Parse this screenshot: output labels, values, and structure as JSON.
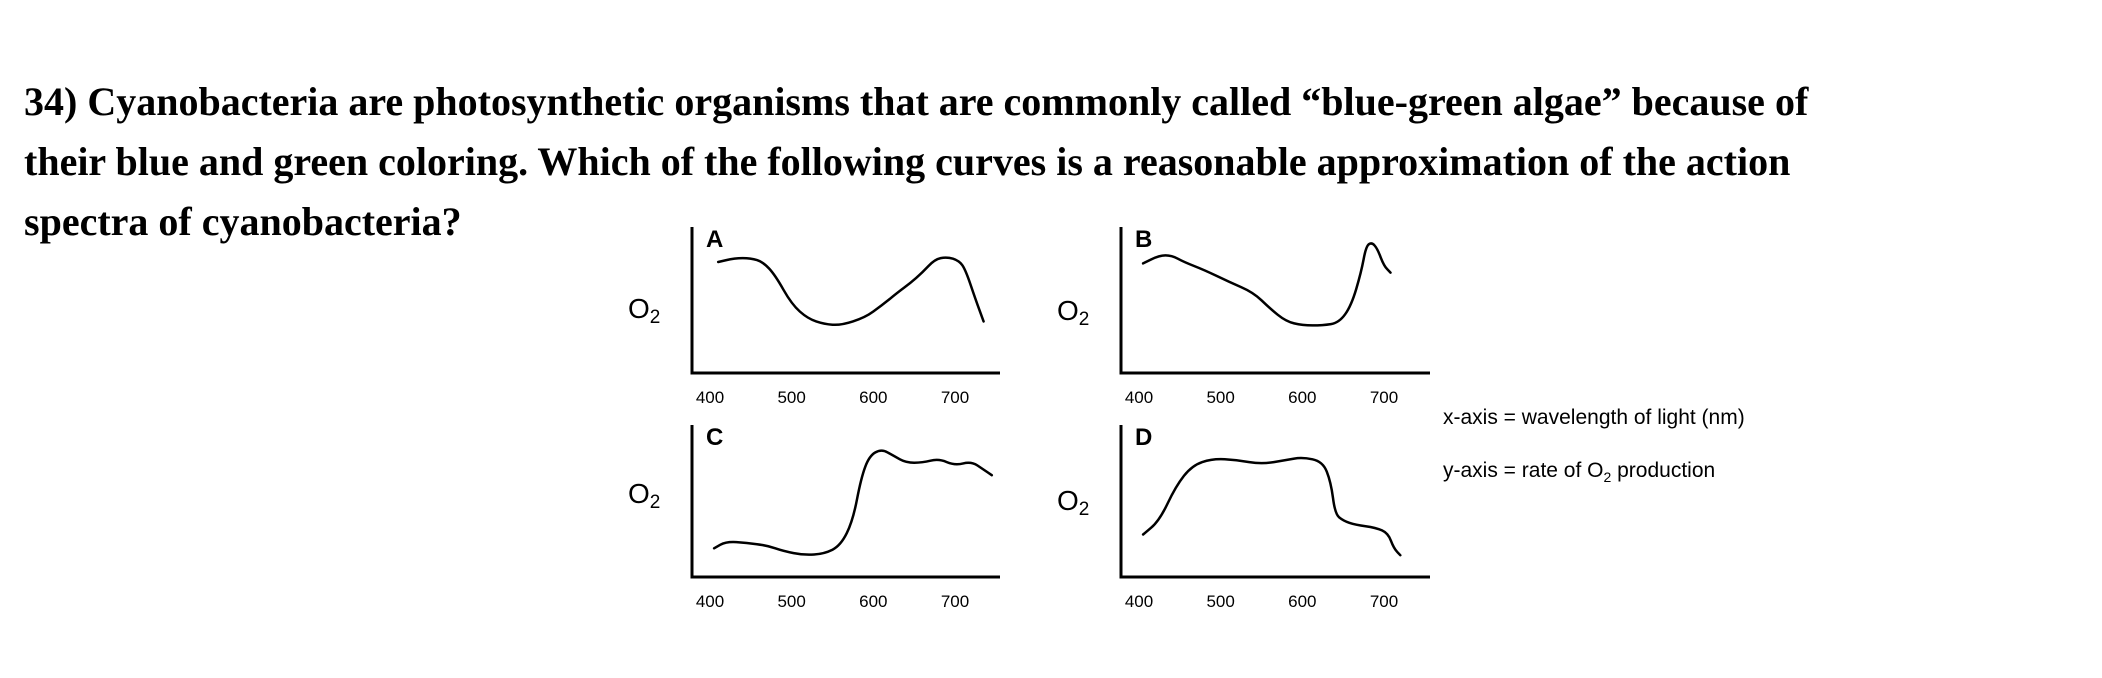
{
  "question": {
    "lines": [
      "34) Cyanobacteria are photosynthetic organisms that are commonly called “blue-green algae” because of",
      "their blue and green coloring. Which of the following curves is a reasonable approximation of the action",
      "spectra of cyanobacteria?"
    ]
  },
  "legend": {
    "x_axis": "x-axis = wavelength of light (nm)",
    "y_axis_prefix": "y-axis = rate of O",
    "y_axis_sub": "2",
    "y_axis_suffix": " production"
  },
  "chart_data": [
    {
      "type": "line",
      "panel_label": "A",
      "ylabel_main": "O",
      "ylabel_sub": "2",
      "xticks": [
        "400",
        "500",
        "600",
        "700"
      ],
      "tick_values": [
        400,
        500,
        600,
        700
      ],
      "xlim": [
        380,
        750
      ],
      "ylim": [
        0,
        1
      ],
      "grid": false,
      "series": [
        {
          "x": [
            410,
            430,
            450,
            465,
            480,
            500,
            520,
            540,
            560,
            590,
            610,
            630,
            645,
            660,
            675,
            690,
            705,
            713,
            725,
            735
          ],
          "y": [
            0.78,
            0.81,
            0.81,
            0.78,
            0.68,
            0.46,
            0.35,
            0.31,
            0.3,
            0.36,
            0.45,
            0.55,
            0.62,
            0.7,
            0.8,
            0.82,
            0.79,
            0.72,
            0.5,
            0.33
          ]
        }
      ]
    },
    {
      "type": "line",
      "panel_label": "B",
      "ylabel_main": "O",
      "ylabel_sub": "2",
      "xticks": [
        "400",
        "500",
        "600",
        "700"
      ],
      "tick_values": [
        400,
        500,
        600,
        700
      ],
      "xlim": [
        380,
        750
      ],
      "ylim": [
        0,
        1
      ],
      "grid": false,
      "series": [
        {
          "x": [
            405,
            425,
            440,
            455,
            480,
            510,
            540,
            560,
            580,
            600,
            625,
            645,
            660,
            672,
            678,
            685,
            692,
            700,
            708
          ],
          "y": [
            0.77,
            0.83,
            0.83,
            0.78,
            0.72,
            0.63,
            0.55,
            0.43,
            0.33,
            0.3,
            0.3,
            0.32,
            0.45,
            0.7,
            0.9,
            0.93,
            0.88,
            0.75,
            0.7
          ]
        }
      ]
    },
    {
      "type": "line",
      "panel_label": "C",
      "ylabel_main": "O",
      "ylabel_sub": "2",
      "xticks": [
        "400",
        "500",
        "600",
        "700"
      ],
      "tick_values": [
        400,
        500,
        600,
        700
      ],
      "xlim": [
        380,
        750
      ],
      "ylim": [
        0,
        1
      ],
      "grid": false,
      "series": [
        {
          "x": [
            405,
            420,
            445,
            470,
            490,
            515,
            540,
            560,
            575,
            585,
            595,
            610,
            625,
            640,
            660,
            680,
            700,
            720,
            735,
            745
          ],
          "y": [
            0.15,
            0.2,
            0.19,
            0.17,
            0.13,
            0.1,
            0.11,
            0.17,
            0.35,
            0.66,
            0.82,
            0.87,
            0.82,
            0.77,
            0.77,
            0.8,
            0.75,
            0.78,
            0.72,
            0.68
          ]
        }
      ]
    },
    {
      "type": "line",
      "panel_label": "D",
      "ylabel_main": "O",
      "ylabel_sub": "2",
      "xticks": [
        "400",
        "500",
        "600",
        "700"
      ],
      "tick_values": [
        400,
        500,
        600,
        700
      ],
      "xlim": [
        380,
        750
      ],
      "ylim": [
        0,
        1
      ],
      "grid": false,
      "series": [
        {
          "x": [
            405,
            425,
            445,
            465,
            490,
            520,
            550,
            580,
            600,
            625,
            635,
            640,
            650,
            665,
            690,
            705,
            712,
            720
          ],
          "y": [
            0.25,
            0.35,
            0.6,
            0.75,
            0.8,
            0.79,
            0.76,
            0.79,
            0.81,
            0.78,
            0.63,
            0.4,
            0.35,
            0.32,
            0.3,
            0.26,
            0.15,
            0.1
          ]
        }
      ]
    }
  ]
}
